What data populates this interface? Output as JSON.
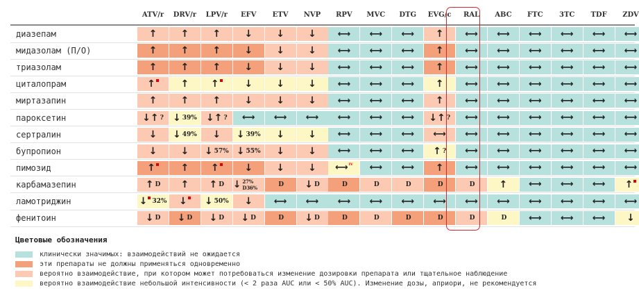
{
  "columns": [
    "ATV/r",
    "DRV/r",
    "LPV/r",
    "EFV",
    "ETV",
    "NVP",
    "RPV",
    "MVC",
    "DTG",
    "EVG/c",
    "RAL",
    "ABC",
    "FTC",
    "3TC",
    "TDF",
    "ZDV"
  ],
  "rows": [
    {
      "label": "диазепам",
      "cells": [
        {
          "c": "light",
          "a": "up"
        },
        {
          "c": "light",
          "a": "up"
        },
        {
          "c": "light",
          "a": "up"
        },
        {
          "c": "light",
          "a": "down"
        },
        {
          "c": "light",
          "a": "down"
        },
        {
          "c": "light",
          "a": "down"
        },
        {
          "c": "green",
          "a": "both"
        },
        {
          "c": "green",
          "a": "both"
        },
        {
          "c": "green",
          "a": "both"
        },
        {
          "c": "light",
          "a": "up"
        },
        {
          "c": "green",
          "a": "both"
        },
        {
          "c": "green",
          "a": "both"
        },
        {
          "c": "green",
          "a": "both"
        },
        {
          "c": "green",
          "a": "both"
        },
        {
          "c": "green",
          "a": "both"
        },
        {
          "c": "green",
          "a": "both"
        }
      ]
    },
    {
      "label": "мидазолам (П/О)",
      "cells": [
        {
          "c": "dark",
          "a": "up"
        },
        {
          "c": "dark",
          "a": "up"
        },
        {
          "c": "dark",
          "a": "up"
        },
        {
          "c": "dark",
          "a": "down"
        },
        {
          "c": "light",
          "a": "down"
        },
        {
          "c": "light",
          "a": "down"
        },
        {
          "c": "green",
          "a": "both"
        },
        {
          "c": "green",
          "a": "both"
        },
        {
          "c": "green",
          "a": "both"
        },
        {
          "c": "dark",
          "a": "up"
        },
        {
          "c": "green",
          "a": "both"
        },
        {
          "c": "green",
          "a": "both"
        },
        {
          "c": "green",
          "a": "both"
        },
        {
          "c": "green",
          "a": "both"
        },
        {
          "c": "green",
          "a": "both"
        },
        {
          "c": "green",
          "a": "both"
        }
      ]
    },
    {
      "label": "триазолам",
      "cells": [
        {
          "c": "dark",
          "a": "up"
        },
        {
          "c": "dark",
          "a": "up"
        },
        {
          "c": "dark",
          "a": "up"
        },
        {
          "c": "dark",
          "a": "down"
        },
        {
          "c": "light",
          "a": "down"
        },
        {
          "c": "light",
          "a": "down"
        },
        {
          "c": "green",
          "a": "both"
        },
        {
          "c": "green",
          "a": "both"
        },
        {
          "c": "green",
          "a": "both"
        },
        {
          "c": "dark",
          "a": "up"
        },
        {
          "c": "green",
          "a": "both"
        },
        {
          "c": "green",
          "a": "both"
        },
        {
          "c": "green",
          "a": "both"
        },
        {
          "c": "green",
          "a": "both"
        },
        {
          "c": "green",
          "a": "both"
        },
        {
          "c": "green",
          "a": "both"
        }
      ]
    },
    {
      "label": "циталопрам",
      "cells": [
        {
          "c": "light",
          "a": "up",
          "flag": true
        },
        {
          "c": "yellow",
          "a": "up"
        },
        {
          "c": "yellow",
          "a": "up",
          "flag": true
        },
        {
          "c": "yellow",
          "a": "down"
        },
        {
          "c": "yellow",
          "a": "down"
        },
        {
          "c": "yellow",
          "a": "down"
        },
        {
          "c": "green",
          "a": "both"
        },
        {
          "c": "green",
          "a": "both"
        },
        {
          "c": "green",
          "a": "both"
        },
        {
          "c": "yellow",
          "a": "up"
        },
        {
          "c": "green",
          "a": "both"
        },
        {
          "c": "green",
          "a": "both"
        },
        {
          "c": "green",
          "a": "both"
        },
        {
          "c": "green",
          "a": "both"
        },
        {
          "c": "green",
          "a": "both"
        },
        {
          "c": "green",
          "a": "both"
        }
      ]
    },
    {
      "label": "миртазапин",
      "cells": [
        {
          "c": "light",
          "a": "up"
        },
        {
          "c": "light",
          "a": "up"
        },
        {
          "c": "light",
          "a": "up"
        },
        {
          "c": "light",
          "a": "down"
        },
        {
          "c": "light",
          "a": "down"
        },
        {
          "c": "light",
          "a": "down"
        },
        {
          "c": "green",
          "a": "both"
        },
        {
          "c": "green",
          "a": "both"
        },
        {
          "c": "green",
          "a": "both"
        },
        {
          "c": "light",
          "a": "up"
        },
        {
          "c": "green",
          "a": "both"
        },
        {
          "c": "green",
          "a": "both"
        },
        {
          "c": "green",
          "a": "both"
        },
        {
          "c": "green",
          "a": "both"
        },
        {
          "c": "green",
          "a": "both"
        },
        {
          "c": "green",
          "a": "both"
        }
      ]
    },
    {
      "label": "пароксетин",
      "cells": [
        {
          "c": "light",
          "a": "down-up",
          "note": "?"
        },
        {
          "c": "yellow",
          "a": "down",
          "note": "39%"
        },
        {
          "c": "light",
          "a": "down-up",
          "note": "?"
        },
        {
          "c": "green",
          "a": "both"
        },
        {
          "c": "green",
          "a": "both"
        },
        {
          "c": "green",
          "a": "both"
        },
        {
          "c": "green",
          "a": "both"
        },
        {
          "c": "green",
          "a": "both"
        },
        {
          "c": "green",
          "a": "both"
        },
        {
          "c": "light",
          "a": "down-up",
          "note": "?"
        },
        {
          "c": "green",
          "a": "both"
        },
        {
          "c": "green",
          "a": "both"
        },
        {
          "c": "green",
          "a": "both"
        },
        {
          "c": "green",
          "a": "both"
        },
        {
          "c": "green",
          "a": "both"
        },
        {
          "c": "green",
          "a": "both"
        }
      ]
    },
    {
      "label": "сертралин",
      "cells": [
        {
          "c": "light",
          "a": "down"
        },
        {
          "c": "yellow",
          "a": "down",
          "note": "49%"
        },
        {
          "c": "light",
          "a": "down"
        },
        {
          "c": "yellow",
          "a": "down",
          "note": "39%"
        },
        {
          "c": "yellow",
          "a": "down"
        },
        {
          "c": "yellow",
          "a": "down"
        },
        {
          "c": "green",
          "a": "both"
        },
        {
          "c": "green",
          "a": "both"
        },
        {
          "c": "green",
          "a": "both"
        },
        {
          "c": "light",
          "a": "both"
        },
        {
          "c": "green",
          "a": "both"
        },
        {
          "c": "green",
          "a": "both"
        },
        {
          "c": "green",
          "a": "both"
        },
        {
          "c": "green",
          "a": "both"
        },
        {
          "c": "green",
          "a": "both"
        },
        {
          "c": "green",
          "a": "both"
        }
      ]
    },
    {
      "label": "бупропион",
      "cells": [
        {
          "c": "light",
          "a": "down"
        },
        {
          "c": "light",
          "a": "down"
        },
        {
          "c": "light",
          "a": "down",
          "note": "57%"
        },
        {
          "c": "light",
          "a": "down",
          "note": "55%"
        },
        {
          "c": "light",
          "a": "down"
        },
        {
          "c": "light",
          "a": "down"
        },
        {
          "c": "green",
          "a": "both"
        },
        {
          "c": "green",
          "a": "both"
        },
        {
          "c": "green",
          "a": "both"
        },
        {
          "c": "yellow",
          "a": "up",
          "note": "?"
        },
        {
          "c": "green",
          "a": "both"
        },
        {
          "c": "green",
          "a": "both"
        },
        {
          "c": "green",
          "a": "both"
        },
        {
          "c": "green",
          "a": "both"
        },
        {
          "c": "green",
          "a": "both"
        },
        {
          "c": "green",
          "a": "both"
        }
      ]
    },
    {
      "label": "пимозид",
      "cells": [
        {
          "c": "dark",
          "a": "up",
          "flag": true
        },
        {
          "c": "dark",
          "a": "up"
        },
        {
          "c": "dark",
          "a": "up",
          "flag": true
        },
        {
          "c": "dark",
          "a": "down"
        },
        {
          "c": "light",
          "a": "down"
        },
        {
          "c": "light",
          "a": "down"
        },
        {
          "c": "yellow",
          "a": "both",
          "sup": "IV"
        },
        {
          "c": "green",
          "a": "both"
        },
        {
          "c": "green",
          "a": "both"
        },
        {
          "c": "dark",
          "a": "up"
        },
        {
          "c": "green",
          "a": "both"
        },
        {
          "c": "green",
          "a": "both"
        },
        {
          "c": "green",
          "a": "both"
        },
        {
          "c": "green",
          "a": "both"
        },
        {
          "c": "green",
          "a": "both"
        },
        {
          "c": "green",
          "a": "both"
        }
      ]
    },
    {
      "label": "карбамазепин",
      "cells": [
        {
          "c": "light",
          "a": "up",
          "note": "D"
        },
        {
          "c": "light",
          "a": "up"
        },
        {
          "c": "light",
          "a": "up",
          "note": "D"
        },
        {
          "c": "light",
          "a": "down",
          "note": "27% D36%"
        },
        {
          "c": "dark",
          "a": "",
          "note": "D"
        },
        {
          "c": "light",
          "a": "down",
          "note": "D"
        },
        {
          "c": "dark",
          "a": "",
          "note": "D"
        },
        {
          "c": "light",
          "a": "",
          "note": "D"
        },
        {
          "c": "light",
          "a": "",
          "note": "D"
        },
        {
          "c": "dark",
          "a": "",
          "note": "D"
        },
        {
          "c": "light",
          "a": "",
          "note": "D"
        },
        {
          "c": "yellow",
          "a": "up"
        },
        {
          "c": "green",
          "a": "both"
        },
        {
          "c": "green",
          "a": "both"
        },
        {
          "c": "green",
          "a": "both"
        },
        {
          "c": "yellow",
          "a": "up",
          "flag": true
        }
      ]
    },
    {
      "label": "ламотриджин",
      "cells": [
        {
          "c": "yellow",
          "a": "down",
          "note": "32%",
          "flag": true
        },
        {
          "c": "light",
          "a": "down",
          "flag": true
        },
        {
          "c": "yellow",
          "a": "down",
          "note": "50%"
        },
        {
          "c": "light",
          "a": "down"
        },
        {
          "c": "green",
          "a": "both"
        },
        {
          "c": "green",
          "a": "both"
        },
        {
          "c": "green",
          "a": "both"
        },
        {
          "c": "green",
          "a": "both"
        },
        {
          "c": "green",
          "a": "both"
        },
        {
          "c": "green",
          "a": "both"
        },
        {
          "c": "green",
          "a": "both"
        },
        {
          "c": "green",
          "a": "both"
        },
        {
          "c": "green",
          "a": "both"
        },
        {
          "c": "green",
          "a": "both"
        },
        {
          "c": "green",
          "a": "both"
        },
        {
          "c": "green",
          "a": "both"
        }
      ]
    },
    {
      "label": "фенитоин",
      "cells": [
        {
          "c": "light",
          "a": "down",
          "note": "D"
        },
        {
          "c": "dark",
          "a": "down",
          "note": "D"
        },
        {
          "c": "light",
          "a": "down",
          "note": "D"
        },
        {
          "c": "light",
          "a": "down",
          "note": "D"
        },
        {
          "c": "dark",
          "a": "",
          "note": "D"
        },
        {
          "c": "light",
          "a": "down",
          "note": "D"
        },
        {
          "c": "dark",
          "a": "",
          "note": "D"
        },
        {
          "c": "light",
          "a": "",
          "note": "D"
        },
        {
          "c": "dark",
          "a": "",
          "note": "D"
        },
        {
          "c": "dark",
          "a": "",
          "note": "D"
        },
        {
          "c": "light",
          "a": "",
          "note": "D"
        },
        {
          "c": "yellow",
          "a": "",
          "note": "D"
        },
        {
          "c": "green",
          "a": "both"
        },
        {
          "c": "green",
          "a": "both"
        },
        {
          "c": "green",
          "a": "both"
        },
        {
          "c": "yellow",
          "a": "down"
        }
      ]
    }
  ],
  "legend": {
    "title": "Цветовые обозначения",
    "items": [
      {
        "color": "green",
        "text": "клинически значимых: взаимодействий не ожидается"
      },
      {
        "color": "dark",
        "text": "эти препараты не должны применяться одновременно"
      },
      {
        "color": "light",
        "text": "вероятно взаимодействие, при котором может потребоваться изменение дозировки препарата или тщательное наблюдение"
      },
      {
        "color": "yellow",
        "text": "вероятно взаимодействие небольшой интенсивности (< 2 раза  AUC или < 50%  AUC). Изменение дозы, априори, не рекомендуется"
      }
    ]
  },
  "colors": {
    "green": "#b6e1dc",
    "dark": "#f4a07a",
    "light": "#fcc9b2",
    "yellow": "#fdf6c5",
    "highlight": "#d9252b"
  },
  "highlight_column": "RAL"
}
